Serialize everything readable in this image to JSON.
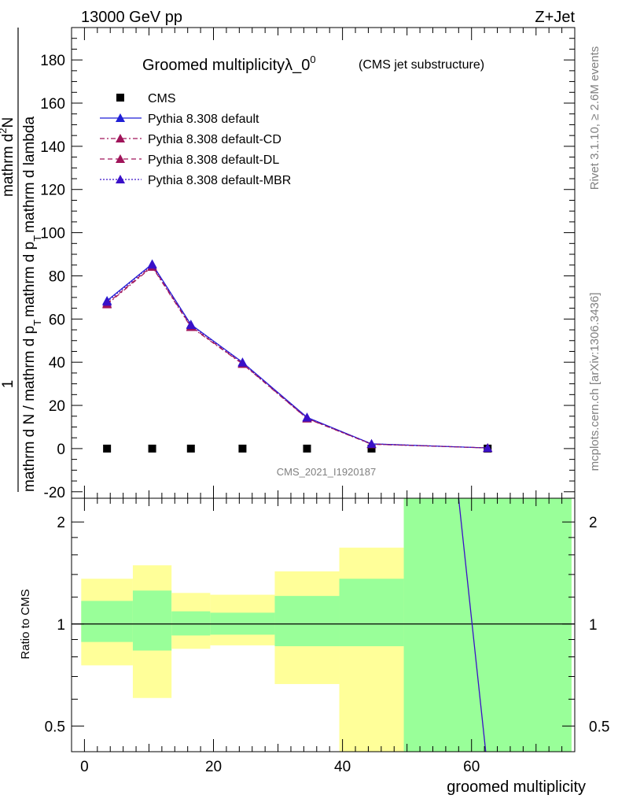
{
  "header": {
    "left": "13000 GeV pp",
    "right": "Z+Jet"
  },
  "side_text": {
    "rivet": "Rivet 3.1.10, ≥ 2.6M events",
    "mcplots": "mcplots.cern.ch [arXiv:1306.3436]"
  },
  "chart_data": [
    {
      "type": "line",
      "title": "Groomed multiplicityλ_0",
      "title_sup": "0",
      "subtitle": "(CMS jet substructure)",
      "watermark": "CMS_2021_I1920187",
      "ylabel_parts": {
        "num": "1",
        "den": "mathrm d N / mathrm d p",
        "den_sub": "T",
        "den_rest": "mathrm d p",
        "den_rest_sub": "T",
        "right": "mathrm d lambda",
        "num2": "mathrm d",
        "num2_sup": "2",
        "num2_end": "N"
      },
      "ylim": [
        -23,
        195
      ],
      "yticks": [
        -20,
        0,
        20,
        40,
        60,
        80,
        100,
        120,
        140,
        160,
        180
      ],
      "xlim": [
        -2,
        76
      ],
      "x": [
        3.5,
        10.5,
        16.5,
        24.5,
        34.5,
        44.5,
        62.5
      ],
      "series": [
        {
          "name": "CMS",
          "marker": "square",
          "color": "#000000",
          "values": [
            0,
            0,
            0,
            0,
            0,
            0,
            0
          ]
        },
        {
          "name": "Pythia 8.308 default",
          "marker": "triangle",
          "color": "#1f1fd6",
          "dash": "",
          "values": [
            68.5,
            85.5,
            57.5,
            40,
            14.5,
            2.2,
            0.3
          ]
        },
        {
          "name": "Pythia 8.308 default-CD",
          "marker": "triangle",
          "color": "#a0145a",
          "dash": "6,3,2,3",
          "values": [
            66.8,
            84.2,
            56.3,
            39.2,
            13.9,
            2.0,
            0.3
          ]
        },
        {
          "name": "Pythia 8.308 default-DL",
          "marker": "triangle",
          "color": "#a0145a",
          "dash": "6,4",
          "values": [
            67.2,
            84.6,
            56.6,
            39.4,
            14.0,
            2.1,
            0.3
          ]
        },
        {
          "name": "Pythia 8.308 default-MBR",
          "marker": "triangle",
          "color": "#3a10c8",
          "dash": "2,2",
          "values": [
            68.0,
            85.2,
            57.2,
            39.8,
            14.3,
            2.2,
            0.3
          ]
        }
      ]
    },
    {
      "type": "area",
      "ylabel": "Ratio to CMS",
      "xlabel": "groomed multiplicity",
      "scale": "log",
      "ylim": [
        0.42,
        2.35
      ],
      "yticks": [
        0.5,
        1,
        2
      ],
      "xticks": [
        0,
        20,
        40,
        60
      ],
      "xlim": [
        -2,
        76
      ],
      "bins": [
        {
          "x0": -0.5,
          "x1": 7.5,
          "green": [
            0.885,
            1.17
          ],
          "yellow": [
            0.755,
            1.36
          ]
        },
        {
          "x0": 7.5,
          "x1": 13.5,
          "green": [
            0.835,
            1.255
          ],
          "yellow": [
            0.605,
            1.49
          ]
        },
        {
          "x0": 13.5,
          "x1": 19.5,
          "green": [
            0.925,
            1.09
          ],
          "yellow": [
            0.845,
            1.235
          ]
        },
        {
          "x0": 19.5,
          "x1": 29.5,
          "green": [
            0.93,
            1.08
          ],
          "yellow": [
            0.865,
            1.22
          ]
        },
        {
          "x0": 29.5,
          "x1": 39.5,
          "green": [
            0.86,
            1.21
          ],
          "yellow": [
            0.665,
            1.43
          ]
        },
        {
          "x0": 39.5,
          "x1": 49.5,
          "green": [
            0.86,
            1.36
          ],
          "yellow": [
            0.42,
            1.68
          ]
        },
        {
          "x0": 49.5,
          "x1": 75.5,
          "green": [
            0.42,
            2.35
          ],
          "yellow": [
            0.42,
            2.35
          ]
        }
      ],
      "ratio_line": {
        "x": [
          58,
          62.2
        ],
        "y": [
          2.35,
          0.42
        ],
        "color": "#3a10c8"
      },
      "ref_line": 1
    }
  ]
}
